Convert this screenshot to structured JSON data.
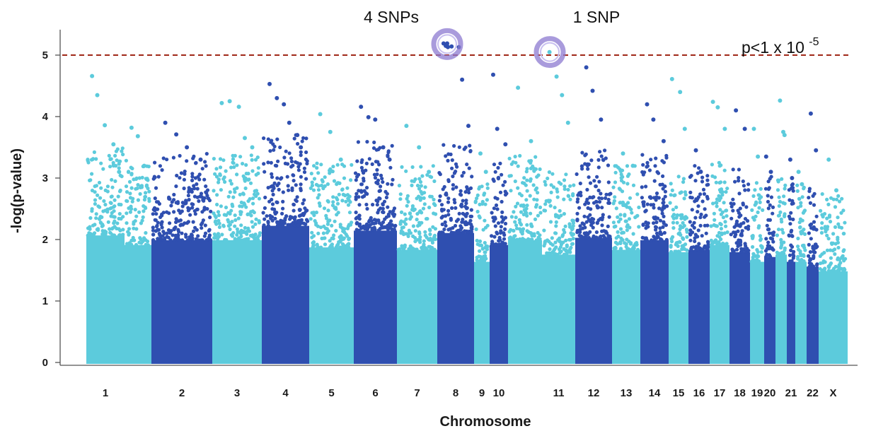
{
  "chart_data": {
    "type": "scatter",
    "subtype": "manhattan",
    "title": "",
    "xlabel": "Chromosome",
    "ylabel": "-log(p-value)",
    "ylim": [
      0,
      5.4
    ],
    "yticks": [
      0,
      1,
      2,
      3,
      4,
      5
    ],
    "grid": false,
    "legend": "none",
    "colors": {
      "light": "#5ccbdc",
      "dark": "#2f4fb0",
      "threshold": "#a02818",
      "highlight": "#8c7ad0"
    },
    "threshold": {
      "value": 5,
      "label_main": "p<1 x 10",
      "label_sup": "-5"
    },
    "annotations": [
      {
        "text": "4 SNPs",
        "chromosome": "8",
        "y": 5.18
      },
      {
        "text": "1 SNP",
        "chromosome": "11",
        "y": 5.05
      }
    ],
    "chromosomes": [
      {
        "label": "1",
        "color": "light",
        "peaks": [
          4.66,
          4.35,
          3.86,
          3.55,
          3.1
        ]
      },
      {
        "label": "",
        "color": "light",
        "peaks": [
          3.82,
          3.68,
          3.2
        ]
      },
      {
        "label": "2",
        "color": "dark",
        "peaks": [
          3.9,
          3.71,
          3.5,
          3.3
        ]
      },
      {
        "label": "3",
        "color": "light",
        "peaks": [
          4.22,
          4.25,
          4.16,
          3.65,
          3.5
        ]
      },
      {
        "label": "4",
        "color": "dark",
        "peaks": [
          4.53,
          4.3,
          4.2,
          3.9,
          3.7,
          3.5
        ]
      },
      {
        "label": "5",
        "color": "light",
        "peaks": [
          4.04,
          3.75,
          3.3
        ]
      },
      {
        "label": "6",
        "color": "dark",
        "peaks": [
          4.16,
          3.99,
          3.95,
          3.5,
          3.3
        ]
      },
      {
        "label": "7",
        "color": "light",
        "peaks": [
          3.85,
          3.5,
          3.1
        ]
      },
      {
        "label": "8",
        "color": "dark",
        "peaks": [
          5.19,
          5.15,
          5.14,
          5.13,
          4.6,
          3.85
        ]
      },
      {
        "label": "9",
        "color": "light",
        "peaks": [
          3.4,
          3.1
        ]
      },
      {
        "label": "10",
        "color": "dark",
        "peaks": [
          4.68,
          3.8,
          3.55
        ]
      },
      {
        "label": "",
        "color": "light",
        "peaks": [
          4.47,
          3.6
        ]
      },
      {
        "label": "11",
        "color": "light",
        "peaks": [
          5.05,
          4.65,
          4.35,
          3.9
        ]
      },
      {
        "label": "12",
        "color": "dark",
        "peaks": [
          4.8,
          4.42,
          3.95
        ]
      },
      {
        "label": "13",
        "color": "light",
        "peaks": [
          3.4,
          3.2
        ]
      },
      {
        "label": "14",
        "color": "dark",
        "peaks": [
          4.2,
          3.95,
          3.6
        ]
      },
      {
        "label": "15",
        "color": "light",
        "peaks": [
          4.61,
          4.4,
          3.8
        ]
      },
      {
        "label": "16",
        "color": "dark",
        "peaks": [
          3.45,
          3.1
        ]
      },
      {
        "label": "17",
        "color": "light",
        "peaks": [
          4.24,
          4.15,
          3.8
        ]
      },
      {
        "label": "18",
        "color": "dark",
        "peaks": [
          4.1,
          3.8
        ]
      },
      {
        "label": "19",
        "color": "light",
        "peaks": [
          3.8,
          3.35
        ]
      },
      {
        "label": "20",
        "color": "dark",
        "peaks": [
          3.35,
          3.1
        ]
      },
      {
        "label": "",
        "color": "light",
        "peaks": [
          4.26,
          3.75,
          3.7
        ]
      },
      {
        "label": "21",
        "color": "dark",
        "peaks": [
          3.3,
          3.0
        ]
      },
      {
        "label": "",
        "color": "light",
        "peaks": [
          3.1,
          2.9
        ]
      },
      {
        "label": "22",
        "color": "dark",
        "peaks": [
          4.05,
          3.45
        ]
      },
      {
        "label": "X",
        "color": "light",
        "peaks": [
          3.3,
          2.8
        ]
      }
    ]
  }
}
